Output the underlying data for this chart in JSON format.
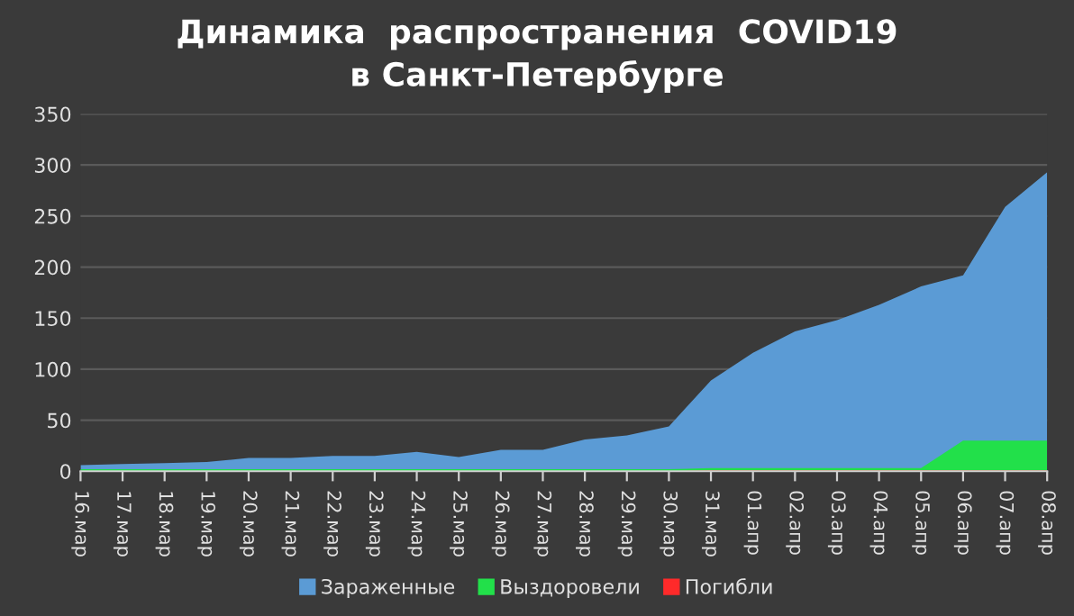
{
  "chart_data": {
    "type": "area",
    "title": "Динамика  распространения  COVID19\nв Санкт-Петербурге",
    "categories": [
      "16.мар",
      "17.мар",
      "18.мар",
      "19.мар",
      "20.мар",
      "21.мар",
      "22.мар",
      "23.мар",
      "24.мар",
      "25.мар",
      "26.мар",
      "27.мар",
      "28.мар",
      "29.мар",
      "30.мар",
      "31.мар",
      "01.апр",
      "02.апр",
      "03.апр",
      "04.апр",
      "05.апр",
      "06.апр",
      "07.апр",
      "08.апр"
    ],
    "series": [
      {
        "name": "Зараженные",
        "color": "#5b9bd5",
        "values": [
          6,
          7,
          8,
          9,
          13,
          13,
          15,
          15,
          19,
          14,
          21,
          21,
          31,
          35,
          44,
          89,
          116,
          137,
          148,
          163,
          181,
          192,
          259,
          293
        ]
      },
      {
        "name": "Выздоровели",
        "color": "#22e04a",
        "values": [
          2,
          2,
          2,
          2,
          2,
          2,
          2,
          2,
          2,
          2,
          2,
          2,
          2,
          2,
          2,
          3,
          3,
          3,
          3,
          3,
          3,
          30,
          30,
          30
        ]
      },
      {
        "name": "Погибли",
        "color": "#ff2a2a",
        "values": [
          0,
          0,
          0,
          0,
          0,
          0,
          0,
          0,
          0,
          0,
          0,
          0,
          0,
          0,
          0,
          1,
          1,
          1,
          1,
          1,
          1,
          1,
          1,
          1
        ]
      }
    ],
    "ylim": [
      0,
      350
    ],
    "yticks": [
      0,
      50,
      100,
      150,
      200,
      250,
      300,
      350
    ],
    "grid": "y",
    "legend": "bottom"
  }
}
